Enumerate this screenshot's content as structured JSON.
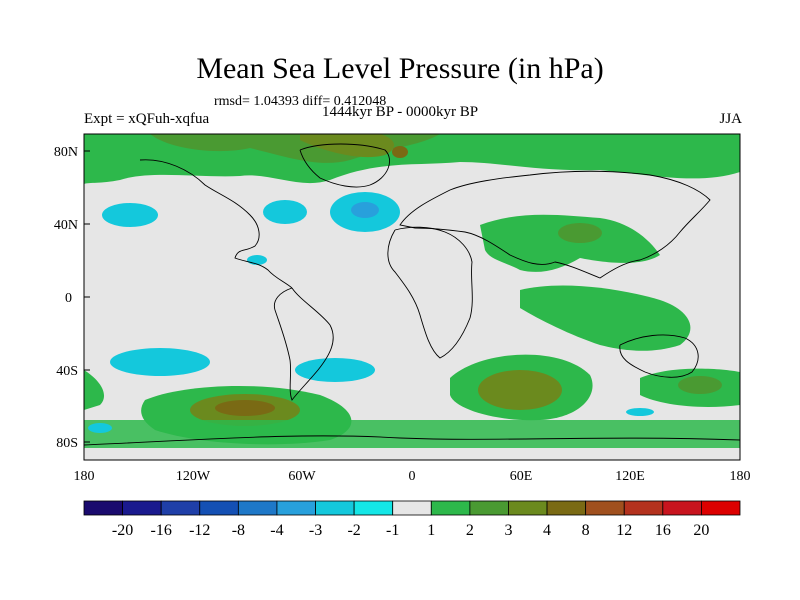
{
  "title": "Mean Sea Level Pressure (in hPa)",
  "stats": "rmsd= 1.04393 diff= 0.412048",
  "experiment": "Expt = xQFuh-xqfua",
  "period": "1444kyr BP - 0000kyr BP",
  "season": "JJA",
  "map": {
    "lat_ticks": [
      "80N",
      "40N",
      "0",
      "40S",
      "80S"
    ],
    "lon_ticks": [
      "180",
      "120W",
      "60W",
      "0",
      "60E",
      "120E",
      "180"
    ],
    "ocean_color": "#e6e6e6"
  },
  "colorbar": {
    "labels": [
      "-20",
      "-16",
      "-12",
      "-8",
      "-4",
      "-3",
      "-2",
      "-1",
      "1",
      "2",
      "3",
      "4",
      "8",
      "12",
      "16",
      "20"
    ],
    "colors": [
      "#1a0a6e",
      "#1a1a8e",
      "#1f3fa8",
      "#1450b4",
      "#1e78c8",
      "#28a0dc",
      "#14c8dc",
      "#14e6e6",
      "#e6e6e6",
      "#2db84b",
      "#4a9a32",
      "#6b8a1e",
      "#7a6a14",
      "#a0501e",
      "#b4321e",
      "#c8141e",
      "#dc0000"
    ]
  }
}
